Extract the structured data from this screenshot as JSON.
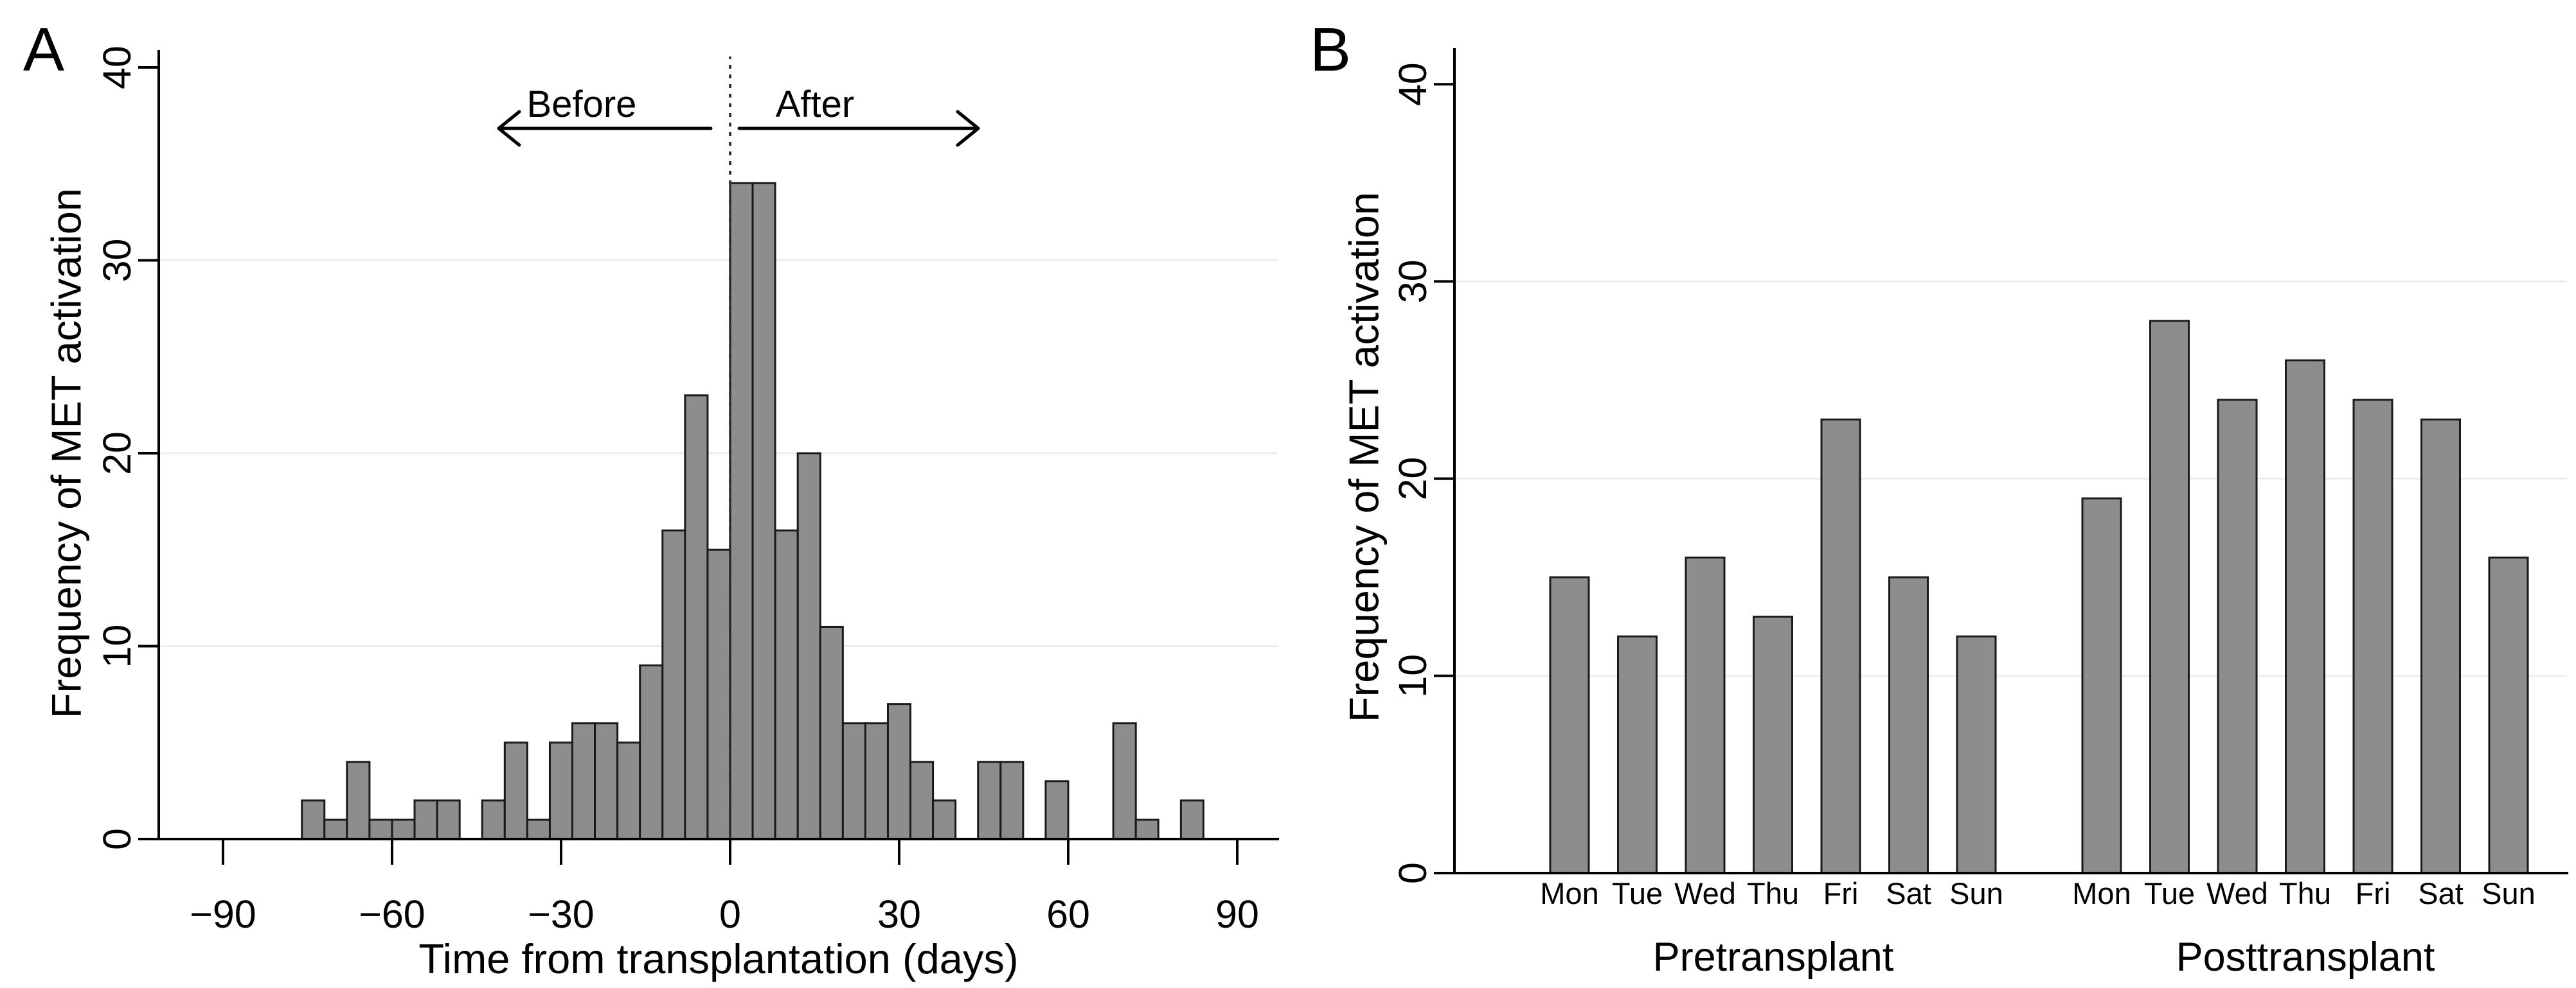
{
  "figure": {
    "background": "#ffffff",
    "bar_fill": "#8d8d8d",
    "bar_stroke": "#1a1a1a",
    "grid_color": "#ededed",
    "axis_color": "#000000",
    "reference_line_color": "#333333",
    "text_color": "#000000"
  },
  "chart_data": [
    {
      "type": "bar",
      "subtype": "histogram",
      "panel_letter": "A",
      "ylabel": "Frequency of MET activation",
      "xlabel": "Time from transplantation (days)",
      "ylim": [
        0,
        40
      ],
      "xlim": [
        -90,
        90
      ],
      "grid": true,
      "legend": "none",
      "yticks": [
        0,
        10,
        20,
        30,
        40
      ],
      "ytick_labels": [
        "0",
        "10",
        "20",
        "30",
        "40"
      ],
      "xticks": [
        -90,
        -60,
        -30,
        0,
        30,
        60,
        90
      ],
      "xtick_labels": [
        "−90",
        "−60",
        "−30",
        "0",
        "30",
        "60",
        "90"
      ],
      "gridline_values": [
        10,
        20,
        30
      ],
      "bin_width_days": 4,
      "bins": [
        {
          "start": -76,
          "count": 2
        },
        {
          "start": -72,
          "count": 1
        },
        {
          "start": -68,
          "count": 4
        },
        {
          "start": -64,
          "count": 1
        },
        {
          "start": -60,
          "count": 1
        },
        {
          "start": -56,
          "count": 2
        },
        {
          "start": -52,
          "count": 2
        },
        {
          "start": -44,
          "count": 2
        },
        {
          "start": -40,
          "count": 5
        },
        {
          "start": -36,
          "count": 1
        },
        {
          "start": -32,
          "count": 5
        },
        {
          "start": -28,
          "count": 6
        },
        {
          "start": -24,
          "count": 6
        },
        {
          "start": -20,
          "count": 5
        },
        {
          "start": -16,
          "count": 9
        },
        {
          "start": -12,
          "count": 16
        },
        {
          "start": -8,
          "count": 23
        },
        {
          "start": -4,
          "count": 15
        },
        {
          "start": 0,
          "count": 34
        },
        {
          "start": 4,
          "count": 34
        },
        {
          "start": 8,
          "count": 16
        },
        {
          "start": 12,
          "count": 20
        },
        {
          "start": 16,
          "count": 11
        },
        {
          "start": 20,
          "count": 6
        },
        {
          "start": 24,
          "count": 6
        },
        {
          "start": 28,
          "count": 7
        },
        {
          "start": 32,
          "count": 4
        },
        {
          "start": 36,
          "count": 2
        },
        {
          "start": 44,
          "count": 4
        },
        {
          "start": 48,
          "count": 4
        },
        {
          "start": 56,
          "count": 3
        },
        {
          "start": 68,
          "count": 6
        },
        {
          "start": 72,
          "count": 1
        },
        {
          "start": 80,
          "count": 2
        }
      ],
      "annotations": {
        "before_label": "Before",
        "after_label": "After",
        "reference_line_x": 0
      }
    },
    {
      "type": "bar",
      "subtype": "grouped-category-bar",
      "panel_letter": "B",
      "ylabel": "Frequency of MET activation",
      "xlabel": "",
      "ylim": [
        0,
        40
      ],
      "grid": true,
      "legend": "none",
      "yticks": [
        0,
        10,
        20,
        30,
        40
      ],
      "ytick_labels": [
        "0",
        "10",
        "20",
        "30",
        "40"
      ],
      "gridline_values": [
        10,
        20,
        30
      ],
      "categories": [
        "Mon",
        "Tue",
        "Wed",
        "Thu",
        "Fri",
        "Sat",
        "Sun"
      ],
      "series": [
        {
          "name": "Pretransplant",
          "values": [
            15,
            12,
            16,
            13,
            23,
            15,
            12
          ]
        },
        {
          "name": "Posttransplant",
          "values": [
            19,
            28,
            24,
            26,
            24,
            23,
            16
          ]
        }
      ]
    }
  ]
}
